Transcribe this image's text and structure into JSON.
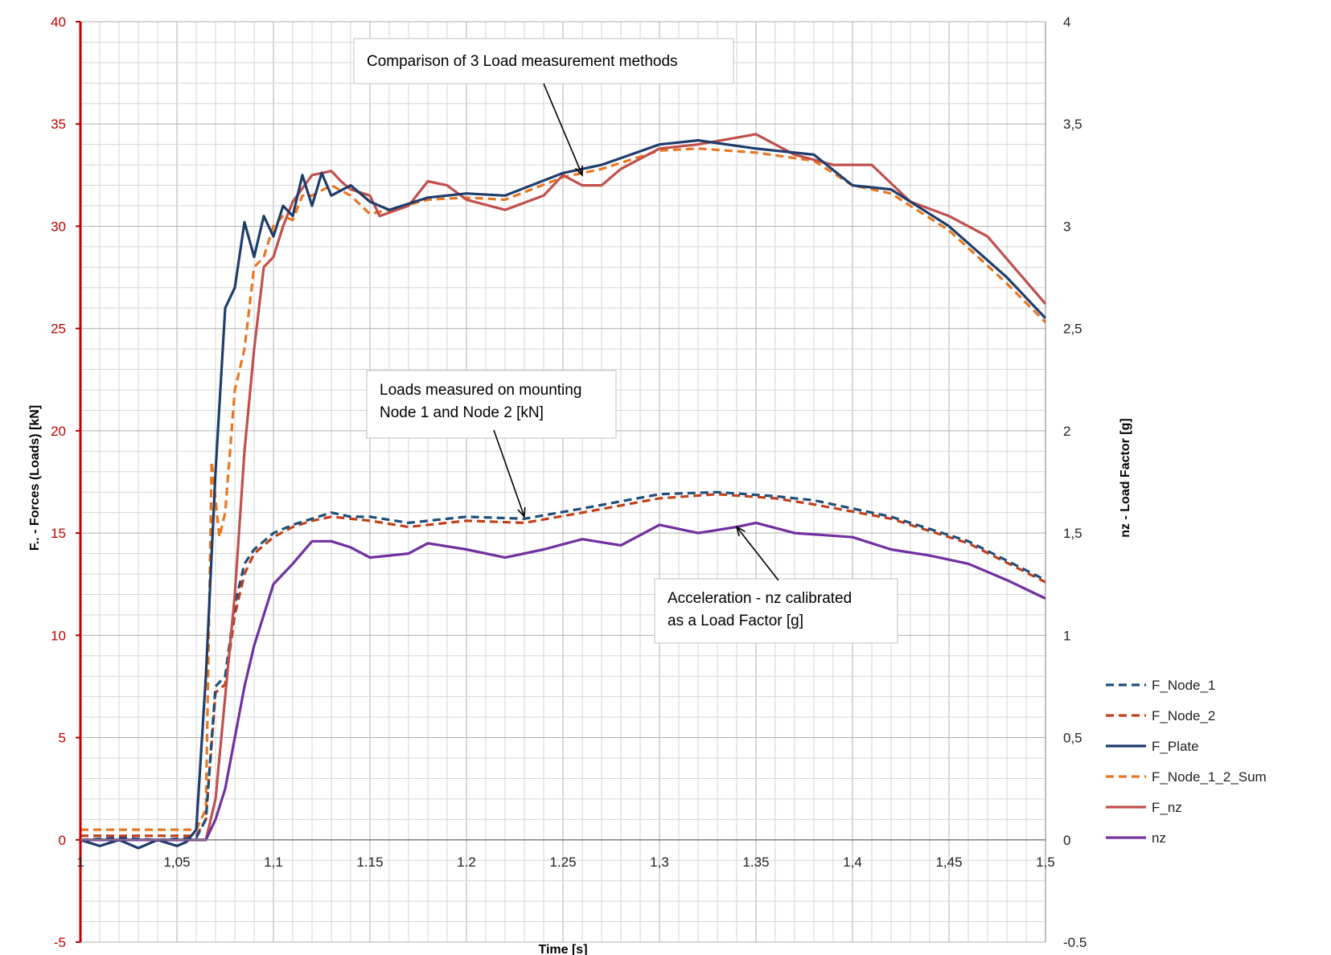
{
  "chart_data": {
    "type": "line",
    "xlabel": "Time [s]",
    "ylabel_left": "F.. - Forces (Loads) [kN]",
    "ylabel_right": "nz - Load Factor [g]",
    "xlim": [
      1,
      1.5
    ],
    "ylim_left": [
      -5,
      40
    ],
    "ylim_right": [
      -0.5,
      4
    ],
    "x_ticks": [
      "1",
      "1,05",
      "1,1",
      "1.15",
      "1.2",
      "1.25",
      "1,3",
      "1.35",
      "1,4",
      "1,45",
      "1,5"
    ],
    "y_left_ticks": [
      "40",
      "35",
      "30",
      "25",
      "20",
      "15",
      "10",
      "5",
      "0",
      "-5"
    ],
    "y_right_ticks": [
      "4",
      "3,5",
      "3",
      "2,5",
      "2",
      "1,5",
      "1",
      "0,5",
      "0",
      "-0.5"
    ],
    "grid": true,
    "legend_position": "right",
    "series": [
      {
        "name": "F_Node_1",
        "color": "#1f4e79",
        "dash": "dashed",
        "axis": "left",
        "x": [
          1.0,
          1.02,
          1.04,
          1.06,
          1.065,
          1.07,
          1.075,
          1.08,
          1.085,
          1.09,
          1.095,
          1.1,
          1.11,
          1.12,
          1.13,
          1.14,
          1.15,
          1.17,
          1.2,
          1.23,
          1.26,
          1.3,
          1.33,
          1.36,
          1.38,
          1.42,
          1.46,
          1.5
        ],
        "y": [
          0.0,
          0.1,
          0.0,
          0.1,
          1.0,
          7.5,
          8.0,
          11.5,
          13.5,
          14.2,
          14.6,
          15.0,
          15.4,
          15.7,
          16.0,
          15.8,
          15.8,
          15.5,
          15.8,
          15.7,
          16.2,
          16.9,
          17.0,
          16.8,
          16.6,
          15.8,
          14.6,
          12.7
        ]
      },
      {
        "name": "F_Node_2",
        "color": "#c0401a",
        "dash": "dashed",
        "axis": "left",
        "x": [
          1.0,
          1.02,
          1.04,
          1.06,
          1.065,
          1.07,
          1.075,
          1.08,
          1.085,
          1.09,
          1.095,
          1.1,
          1.11,
          1.12,
          1.13,
          1.14,
          1.15,
          1.17,
          1.2,
          1.23,
          1.26,
          1.3,
          1.33,
          1.36,
          1.38,
          1.42,
          1.46,
          1.5
        ],
        "y": [
          0.2,
          0.2,
          0.2,
          0.2,
          1.0,
          7.2,
          7.6,
          11.0,
          13.0,
          14.0,
          14.4,
          14.8,
          15.3,
          15.6,
          15.8,
          15.7,
          15.6,
          15.3,
          15.6,
          15.5,
          16.0,
          16.7,
          16.9,
          16.7,
          16.4,
          15.7,
          14.5,
          12.6
        ]
      },
      {
        "name": "F_Plate",
        "color": "#1f3d6b",
        "dash": "solid",
        "axis": "left",
        "x": [
          1.0,
          1.01,
          1.02,
          1.03,
          1.04,
          1.05,
          1.055,
          1.06,
          1.065,
          1.07,
          1.075,
          1.08,
          1.085,
          1.09,
          1.095,
          1.1,
          1.105,
          1.11,
          1.115,
          1.12,
          1.125,
          1.13,
          1.14,
          1.15,
          1.16,
          1.18,
          1.2,
          1.22,
          1.25,
          1.27,
          1.3,
          1.32,
          1.35,
          1.38,
          1.4,
          1.42,
          1.45,
          1.48,
          1.5
        ],
        "y": [
          0.0,
          -0.3,
          0.0,
          -0.4,
          0.0,
          -0.3,
          -0.1,
          0.5,
          8.0,
          18.0,
          26.0,
          27.0,
          30.2,
          28.5,
          30.5,
          29.5,
          31.0,
          30.5,
          32.5,
          31.0,
          32.6,
          31.5,
          32.0,
          31.2,
          30.8,
          31.4,
          31.6,
          31.5,
          32.6,
          33.0,
          34.0,
          34.2,
          33.8,
          33.5,
          32.0,
          31.8,
          30.0,
          27.5,
          25.5
        ]
      },
      {
        "name": "F_Node_1_2_Sum",
        "color": "#e87722",
        "dash": "dashed",
        "axis": "left",
        "x": [
          1.0,
          1.02,
          1.04,
          1.06,
          1.065,
          1.068,
          1.072,
          1.075,
          1.08,
          1.085,
          1.09,
          1.095,
          1.1,
          1.105,
          1.11,
          1.115,
          1.12,
          1.13,
          1.14,
          1.15,
          1.16,
          1.18,
          1.2,
          1.22,
          1.25,
          1.27,
          1.3,
          1.32,
          1.35,
          1.38,
          1.4,
          1.42,
          1.45,
          1.48,
          1.5
        ],
        "y": [
          0.5,
          0.5,
          0.5,
          0.5,
          1.5,
          18.5,
          14.8,
          16.0,
          22.0,
          24.0,
          28.0,
          28.5,
          30.0,
          30.5,
          30.3,
          31.5,
          31.5,
          32.0,
          31.5,
          30.6,
          30.8,
          31.3,
          31.4,
          31.3,
          32.4,
          32.8,
          33.7,
          33.8,
          33.6,
          33.2,
          32.0,
          31.6,
          29.8,
          27.2,
          25.3
        ]
      },
      {
        "name": "F_nz",
        "color": "#c0504d",
        "dash": "solid",
        "axis": "left",
        "x": [
          1.0,
          1.02,
          1.04,
          1.06,
          1.065,
          1.07,
          1.075,
          1.08,
          1.085,
          1.09,
          1.095,
          1.1,
          1.105,
          1.11,
          1.12,
          1.13,
          1.135,
          1.14,
          1.15,
          1.155,
          1.17,
          1.18,
          1.19,
          1.2,
          1.22,
          1.24,
          1.25,
          1.26,
          1.27,
          1.28,
          1.3,
          1.32,
          1.35,
          1.37,
          1.39,
          1.41,
          1.43,
          1.45,
          1.47,
          1.5
        ],
        "y": [
          0.0,
          0.0,
          0.0,
          0.0,
          0.0,
          2.0,
          7.0,
          12.0,
          19.0,
          24.0,
          28.0,
          28.5,
          30.0,
          31.2,
          32.5,
          32.7,
          32.2,
          31.8,
          31.5,
          30.5,
          31.0,
          32.2,
          32.0,
          31.3,
          30.8,
          31.5,
          32.5,
          32.0,
          32.0,
          32.8,
          33.8,
          34.0,
          34.5,
          33.5,
          33.0,
          33.0,
          31.2,
          30.5,
          29.5,
          26.2
        ]
      },
      {
        "name": "nz",
        "color": "#7030a0",
        "dash": "solid",
        "axis": "left",
        "x": [
          1.0,
          1.02,
          1.04,
          1.065,
          1.07,
          1.075,
          1.08,
          1.085,
          1.09,
          1.095,
          1.1,
          1.105,
          1.11,
          1.12,
          1.13,
          1.14,
          1.15,
          1.16,
          1.17,
          1.18,
          1.2,
          1.22,
          1.24,
          1.26,
          1.28,
          1.3,
          1.32,
          1.34,
          1.35,
          1.37,
          1.4,
          1.42,
          1.44,
          1.46,
          1.48,
          1.5
        ],
        "y": [
          0.0,
          0.0,
          0.0,
          0.0,
          1.0,
          2.5,
          5.0,
          7.5,
          9.5,
          11.0,
          12.5,
          13.0,
          13.5,
          14.6,
          14.6,
          14.3,
          13.8,
          13.9,
          14.0,
          14.5,
          14.2,
          13.8,
          14.2,
          14.7,
          14.4,
          15.4,
          15.0,
          15.3,
          15.5,
          15.0,
          14.8,
          14.2,
          13.9,
          13.5,
          12.7,
          11.8
        ]
      }
    ],
    "annotations": [
      {
        "text_lines": [
          "Comparison of 3 Load measurement methods"
        ],
        "target_x": 1.26,
        "target_y": 32.5
      },
      {
        "text_lines": [
          "Loads measured on mounting",
          "Node 1 and Node 2 [kN]"
        ],
        "target_x": 1.23,
        "target_y": 15.8
      },
      {
        "text_lines": [
          "Acceleration - nz calibrated",
          "as a Load Factor [g]"
        ],
        "target_x": 1.34,
        "target_y": 15.3
      }
    ]
  }
}
